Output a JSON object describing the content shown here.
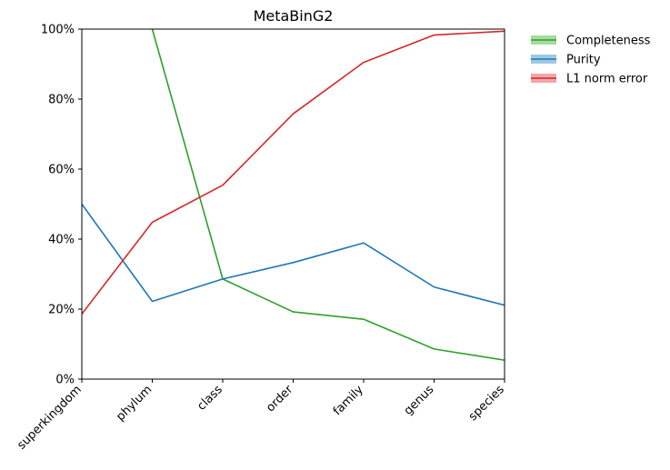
{
  "chart_data": {
    "type": "line",
    "title": "MetaBinG2",
    "xlabel": "",
    "ylabel": "",
    "categories": [
      "superkingdom",
      "phylum",
      "class",
      "order",
      "family",
      "genus",
      "species"
    ],
    "ylim": [
      0,
      100
    ],
    "yticks": [
      "0%",
      "20%",
      "40%",
      "60%",
      "80%",
      "100%"
    ],
    "grid": false,
    "legend_position": "outside-top-right",
    "series": [
      {
        "name": "Completeness",
        "color": "#2ca02c",
        "band_color": "#a6dba0",
        "values": [
          null,
          100,
          28.6,
          19.2,
          17.1,
          8.6,
          5.4
        ]
      },
      {
        "name": "Purity",
        "color": "#1f77b4",
        "band_color": "#9ecae1",
        "values": [
          50,
          22.2,
          28.6,
          33.3,
          38.9,
          26.3,
          21.1
        ]
      },
      {
        "name": "L1 norm error",
        "color": "#d62728",
        "band_color": "#f4a6a6",
        "values": [
          18.6,
          44.8,
          55.4,
          75.8,
          90.5,
          98.3,
          99.4
        ]
      }
    ]
  }
}
